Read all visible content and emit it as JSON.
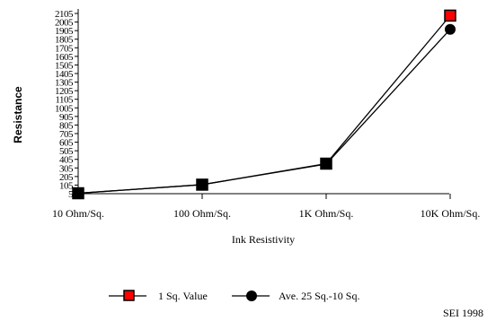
{
  "chart_data": {
    "type": "line",
    "title": "",
    "xlabel": "Ink Resistivity",
    "ylabel": "Resistance",
    "categories": [
      "10 Ohm/Sq.",
      "100 Ohm/Sq.",
      "1K Ohm/Sq.",
      "10K Ohm/Sq."
    ],
    "y_ticks": [
      "5",
      "105",
      "205",
      "305",
      "405",
      "505",
      "605",
      "705",
      "805",
      "905",
      "1005",
      "1105",
      "1205",
      "1305",
      "1405",
      "1505",
      "1605",
      "1705",
      "1805",
      "1905",
      "2005",
      "2105"
    ],
    "ylim": [
      5,
      2105
    ],
    "series": [
      {
        "name": "1 Sq. Value",
        "values": [
          10,
          110,
          355,
          2080
        ],
        "marker": "square",
        "color": "#ff0000"
      },
      {
        "name": "Ave. 25 Sq.-10 Sq.",
        "values": [
          10,
          110,
          350,
          1920
        ],
        "marker": "circle",
        "color": "#000000"
      }
    ],
    "legend_position": "bottom",
    "grid": false
  },
  "credit": "SEI 1998"
}
